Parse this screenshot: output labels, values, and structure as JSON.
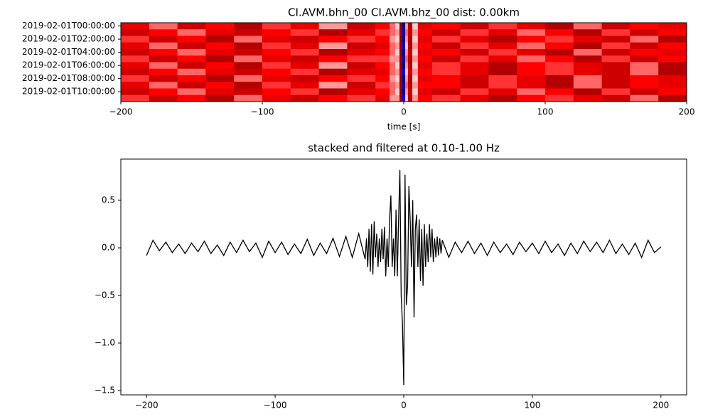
{
  "chart_data": [
    {
      "type": "heatmap",
      "title": "CI.AVM.bhn_00 CI.AVM.bhz_00  dist: 0.00km",
      "xlabel": "time [s]",
      "xlim": [
        -200,
        200
      ],
      "xticks": [
        {
          "value": -200,
          "label": "−200"
        },
        {
          "value": -100,
          "label": "−100"
        },
        0,
        100,
        200
      ],
      "x_edges": [
        -200,
        -180,
        -160,
        -140,
        -120,
        -100,
        -80,
        -60,
        -40,
        -20,
        -10,
        -6,
        -3,
        -1,
        1,
        3,
        6,
        10,
        20,
        40,
        60,
        80,
        100,
        120,
        140,
        160,
        180,
        200
      ],
      "y_categories": [
        "2019-02-01T00:00:00",
        null,
        "2019-02-01T02:00:00",
        null,
        "2019-02-01T04:00:00",
        null,
        "2019-02-01T06:00:00",
        null,
        "2019-02-01T08:00:00",
        null,
        "2019-02-01T10:00:00",
        null
      ],
      "clim": [
        -1,
        1
      ],
      "z": [
        [
          0.6,
          0.3,
          0.7,
          0.5,
          0.8,
          0.4,
          0.6,
          0.2,
          0.7,
          0.5,
          0.3,
          0.1,
          0.95,
          -0.8,
          0.2,
          0.8,
          0.1,
          0.6,
          0.5,
          0.7,
          0.4,
          0.6,
          0.8,
          0.3,
          0.7,
          0.5,
          0.6
        ],
        [
          0.7,
          0.5,
          0.3,
          0.6,
          0.7,
          0.5,
          0.4,
          0.8,
          0.6,
          0.4,
          0.3,
          0.2,
          0.9,
          -0.7,
          0.3,
          0.7,
          0.2,
          0.5,
          0.7,
          0.4,
          0.6,
          0.3,
          0.5,
          0.8,
          0.4,
          0.7,
          0.5
        ],
        [
          0.4,
          0.7,
          0.5,
          0.8,
          0.3,
          0.6,
          0.7,
          0.5,
          0.4,
          0.5,
          0.2,
          0.1,
          0.95,
          -0.8,
          0.2,
          0.8,
          0.1,
          0.6,
          0.4,
          0.6,
          0.8,
          0.5,
          0.4,
          0.6,
          0.7,
          0.3,
          0.8
        ],
        [
          0.6,
          0.3,
          0.7,
          0.5,
          0.8,
          0.4,
          0.6,
          0.2,
          0.7,
          0.6,
          0.3,
          0.2,
          0.9,
          -0.6,
          0.1,
          0.8,
          0.2,
          0.5,
          0.7,
          0.4,
          0.6,
          0.3,
          0.5,
          0.8,
          0.4,
          0.7,
          0.5
        ],
        [
          0.7,
          0.5,
          0.3,
          0.6,
          0.7,
          0.5,
          0.4,
          0.8,
          0.6,
          0.5,
          0.3,
          0.1,
          0.95,
          -0.8,
          0.2,
          0.7,
          0.1,
          0.6,
          0.5,
          0.7,
          0.4,
          0.6,
          0.8,
          0.3,
          0.7,
          0.5,
          0.6
        ],
        [
          0.4,
          0.7,
          0.5,
          0.8,
          0.3,
          0.6,
          0.7,
          0.5,
          0.4,
          0.4,
          0.2,
          0.2,
          0.9,
          -0.7,
          0.3,
          0.8,
          0.2,
          0.5,
          0.7,
          0.4,
          0.6,
          0.3,
          0.5,
          0.8,
          0.4,
          0.7,
          0.5
        ],
        [
          0.6,
          0.3,
          0.7,
          0.5,
          0.8,
          0.4,
          0.6,
          0.2,
          0.7,
          0.5,
          0.3,
          0.1,
          0.95,
          -0.8,
          0.2,
          0.8,
          0.1,
          0.6,
          0.4,
          0.6,
          0.8,
          0.5,
          0.4,
          0.6,
          0.7,
          0.3,
          0.8
        ],
        [
          0.7,
          0.5,
          0.3,
          0.6,
          0.7,
          0.5,
          0.4,
          0.8,
          0.6,
          0.6,
          0.3,
          0.2,
          0.9,
          -0.6,
          0.1,
          0.7,
          0.2,
          0.5,
          0.4,
          0.6,
          0.8,
          0.5,
          0.4,
          0.6,
          0.7,
          0.3,
          0.8
        ],
        [
          0.4,
          0.7,
          0.5,
          0.8,
          0.3,
          0.6,
          0.7,
          0.5,
          0.4,
          0.5,
          0.2,
          0.1,
          0.95,
          -0.8,
          0.2,
          0.8,
          0.1,
          0.6,
          0.5,
          0.7,
          0.4,
          0.6,
          0.8,
          0.3,
          0.7,
          0.5,
          0.6
        ],
        [
          0.6,
          0.3,
          0.7,
          0.5,
          0.8,
          0.4,
          0.6,
          0.2,
          0.7,
          0.4,
          0.3,
          0.2,
          0.9,
          -0.7,
          0.3,
          0.8,
          0.2,
          0.5,
          0.5,
          0.7,
          0.4,
          0.6,
          0.8,
          0.3,
          0.7,
          0.5,
          0.6
        ],
        [
          0.7,
          0.5,
          0.3,
          0.6,
          0.7,
          0.5,
          0.4,
          0.8,
          0.6,
          0.5,
          0.3,
          0.1,
          0.95,
          -0.8,
          0.2,
          0.7,
          0.1,
          0.6,
          0.7,
          0.4,
          0.6,
          0.3,
          0.5,
          0.8,
          0.4,
          0.7,
          0.5
        ],
        [
          0.4,
          0.7,
          0.5,
          0.8,
          0.3,
          0.6,
          0.7,
          0.5,
          0.4,
          0.6,
          0.2,
          0.2,
          0.9,
          -0.6,
          0.1,
          0.8,
          0.2,
          0.5,
          0.4,
          0.6,
          0.8,
          0.5,
          0.4,
          0.6,
          0.7,
          0.3,
          0.8
        ]
      ]
    },
    {
      "type": "line",
      "title": "stacked and filtered at 0.10-1.00 Hz",
      "color": "#000000",
      "xlim": [
        -220,
        220
      ],
      "ylim": [
        -1.545,
        0.933
      ],
      "xticks": [
        {
          "value": -200,
          "label": "−200"
        },
        {
          "value": -100,
          "label": "−100"
        },
        0,
        100,
        200
      ],
      "yticks": [
        {
          "value": -1.5,
          "label": "−1.5"
        },
        {
          "value": -1.0,
          "label": "−1.0"
        },
        {
          "value": -0.5,
          "label": "−0.5"
        },
        {
          "value": 0,
          "label": "0.0"
        },
        0.5
      ],
      "x": [
        -200,
        -195,
        -190,
        -185,
        -180,
        -175,
        -170,
        -165,
        -160,
        -155,
        -150,
        -145,
        -140,
        -135,
        -130,
        -125,
        -120,
        -115,
        -110,
        -105,
        -100,
        -95,
        -90,
        -85,
        -80,
        -75,
        -70,
        -65,
        -60,
        -55,
        -50,
        -45,
        -40,
        -35,
        -30,
        -29,
        -28,
        -27,
        -26,
        -25,
        -24,
        -23,
        -22,
        -21,
        -20,
        -19,
        -18,
        -17,
        -16,
        -15,
        -14,
        -13,
        -12,
        -11,
        -10,
        -9,
        -8,
        -7,
        -6,
        -5,
        -4,
        -3,
        -2,
        -1,
        0,
        1,
        2,
        3,
        4,
        5,
        6,
        7,
        8,
        9,
        10,
        11,
        12,
        13,
        14,
        15,
        16,
        17,
        18,
        19,
        20,
        21,
        22,
        23,
        24,
        25,
        26,
        27,
        28,
        29,
        30,
        35,
        40,
        45,
        50,
        55,
        60,
        65,
        70,
        75,
        80,
        85,
        90,
        95,
        100,
        105,
        110,
        115,
        120,
        125,
        130,
        135,
        140,
        145,
        150,
        155,
        160,
        165,
        170,
        175,
        180,
        185,
        190,
        195,
        200
      ],
      "values": [
        -0.08,
        0.08,
        -0.03,
        0.06,
        -0.05,
        0.04,
        -0.06,
        0.05,
        -0.04,
        0.07,
        -0.06,
        0.03,
        -0.08,
        0.06,
        -0.05,
        0.08,
        -0.04,
        0.05,
        -0.1,
        0.07,
        -0.05,
        0.06,
        -0.07,
        0.04,
        -0.06,
        0.09,
        -0.08,
        0.05,
        -0.06,
        0.1,
        -0.09,
        0.12,
        -0.1,
        0.15,
        -0.12,
        0.1,
        -0.2,
        0.2,
        -0.25,
        0.25,
        -0.28,
        0.28,
        -0.1,
        0.15,
        -0.2,
        0.1,
        -0.15,
        0.2,
        -0.12,
        0.22,
        -0.3,
        0.1,
        -0.2,
        0.3,
        0.55,
        -0.2,
        0.1,
        -0.3,
        0.4,
        -0.3,
        0.3,
        0.82,
        -0.5,
        -0.8,
        -1.44,
        0.77,
        -0.6,
        -0.4,
        0.65,
        0.3,
        -0.2,
        0.5,
        -0.73,
        0.2,
        0.35,
        -0.2,
        0.3,
        -0.35,
        0.2,
        -0.4,
        0.25,
        -0.2,
        0.15,
        -0.15,
        0.25,
        -0.1,
        0.2,
        -0.15,
        0.1,
        -0.1,
        0.12,
        -0.08,
        0.1,
        -0.06,
        0.08,
        -0.1,
        0.06,
        -0.05,
        0.07,
        -0.06,
        0.05,
        -0.08,
        0.06,
        -0.05,
        0.04,
        -0.07,
        0.06,
        -0.04,
        0.05,
        -0.06,
        0.07,
        -0.05,
        0.04,
        -0.08,
        0.05,
        -0.06,
        0.07,
        -0.04,
        0.06,
        -0.05,
        0.08,
        -0.06,
        0.04,
        -0.07,
        0.05,
        -0.1,
        0.08,
        -0.05,
        0.01
      ]
    }
  ]
}
